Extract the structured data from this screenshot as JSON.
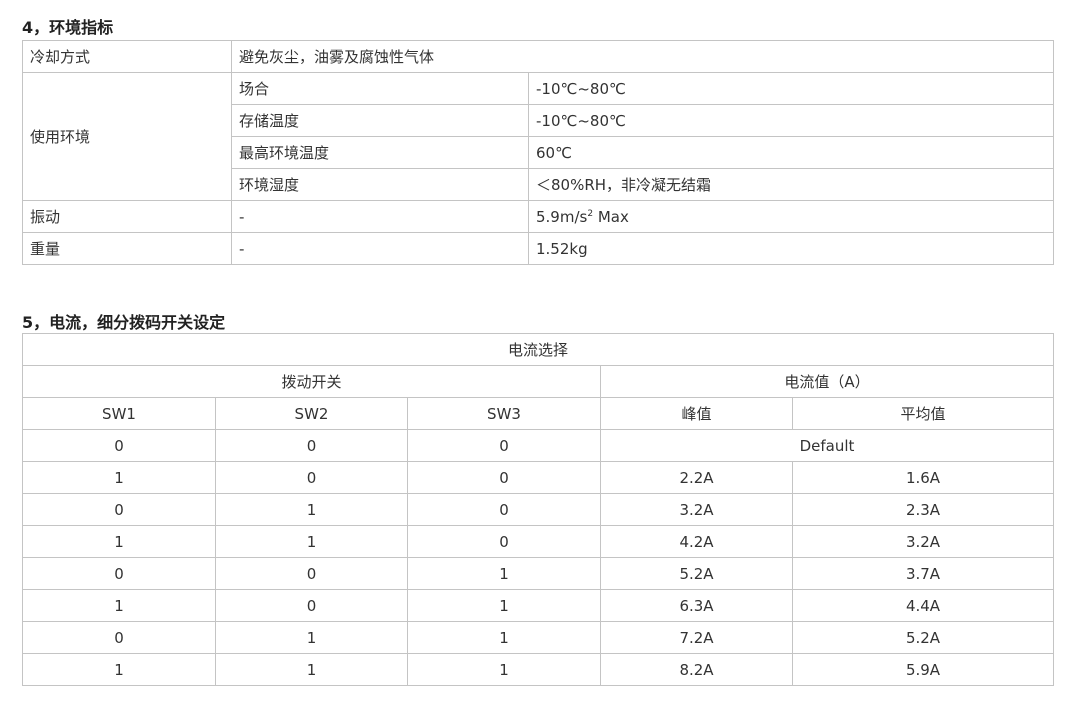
{
  "section4": {
    "title": "4，环境指标",
    "rows": {
      "cooling": {
        "label": "冷却方式",
        "value": "避免灰尘，油雾及腐蚀性气体"
      },
      "env_label": "使用环境",
      "env": [
        {
          "label": "场合",
          "value": "-10℃~80℃"
        },
        {
          "label": "存储温度",
          "value": "-10℃~80℃"
        },
        {
          "label": "最高环境温度",
          "value": "60℃"
        },
        {
          "label": "环境湿度",
          "value": "＜80%RH，非冷凝无结霜"
        }
      ],
      "vibration": {
        "label": "振动",
        "sub": "-",
        "value": "5.9m/s",
        "sup": "2",
        "suffix": " Max"
      },
      "weight": {
        "label": "重量",
        "sub": "-",
        "value": "1.52kg"
      }
    }
  },
  "section5": {
    "title": "5，电流，细分拨码开关设定",
    "header": "电流选择",
    "group_switch": "拨动开关",
    "group_current": "电流值（A）",
    "cols": [
      "SW1",
      "SW2",
      "SW3",
      "峰值",
      "平均值"
    ],
    "default_row": {
      "sw": [
        "0",
        "0",
        "0"
      ],
      "value": "Default"
    },
    "rows": [
      [
        "1",
        "0",
        "0",
        "2.2A",
        "1.6A"
      ],
      [
        "0",
        "1",
        "0",
        "3.2A",
        "2.3A"
      ],
      [
        "1",
        "1",
        "0",
        "4.2A",
        "3.2A"
      ],
      [
        "0",
        "0",
        "1",
        "5.2A",
        "3.7A"
      ],
      [
        "1",
        "0",
        "1",
        "6.3A",
        "4.4A"
      ],
      [
        "0",
        "1",
        "1",
        "7.2A",
        "5.2A"
      ],
      [
        "1",
        "1",
        "1",
        "8.2A",
        "5.9A"
      ]
    ]
  }
}
